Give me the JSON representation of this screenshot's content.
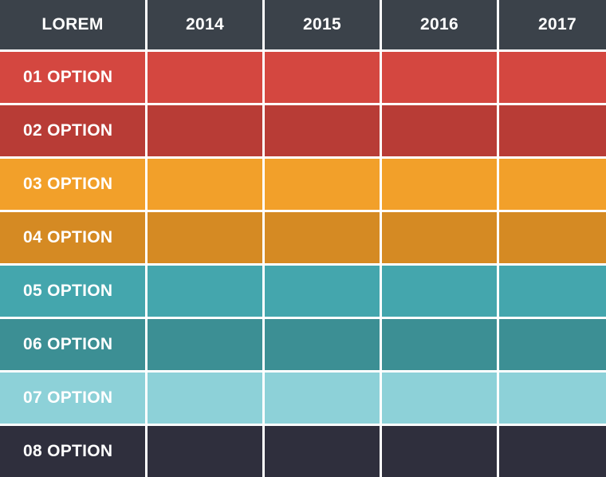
{
  "header": {
    "corner": "LOREM",
    "years": [
      "2014",
      "2015",
      "2016",
      "2017"
    ],
    "color": "#3b424a"
  },
  "rows": [
    {
      "label": "01 OPTION",
      "color": "#d44740"
    },
    {
      "label": "02 OPTION",
      "color": "#b83c36"
    },
    {
      "label": "03 OPTION",
      "color": "#f2a02a"
    },
    {
      "label": "04 OPTION",
      "color": "#d58a23"
    },
    {
      "label": "05 OPTION",
      "color": "#44a6ad"
    },
    {
      "label": "06 OPTION",
      "color": "#3c8f94"
    },
    {
      "label": "07 OPTION",
      "color": "#8dd1d8"
    },
    {
      "label": "08 OPTION",
      "color": "#2f2f3d"
    }
  ]
}
